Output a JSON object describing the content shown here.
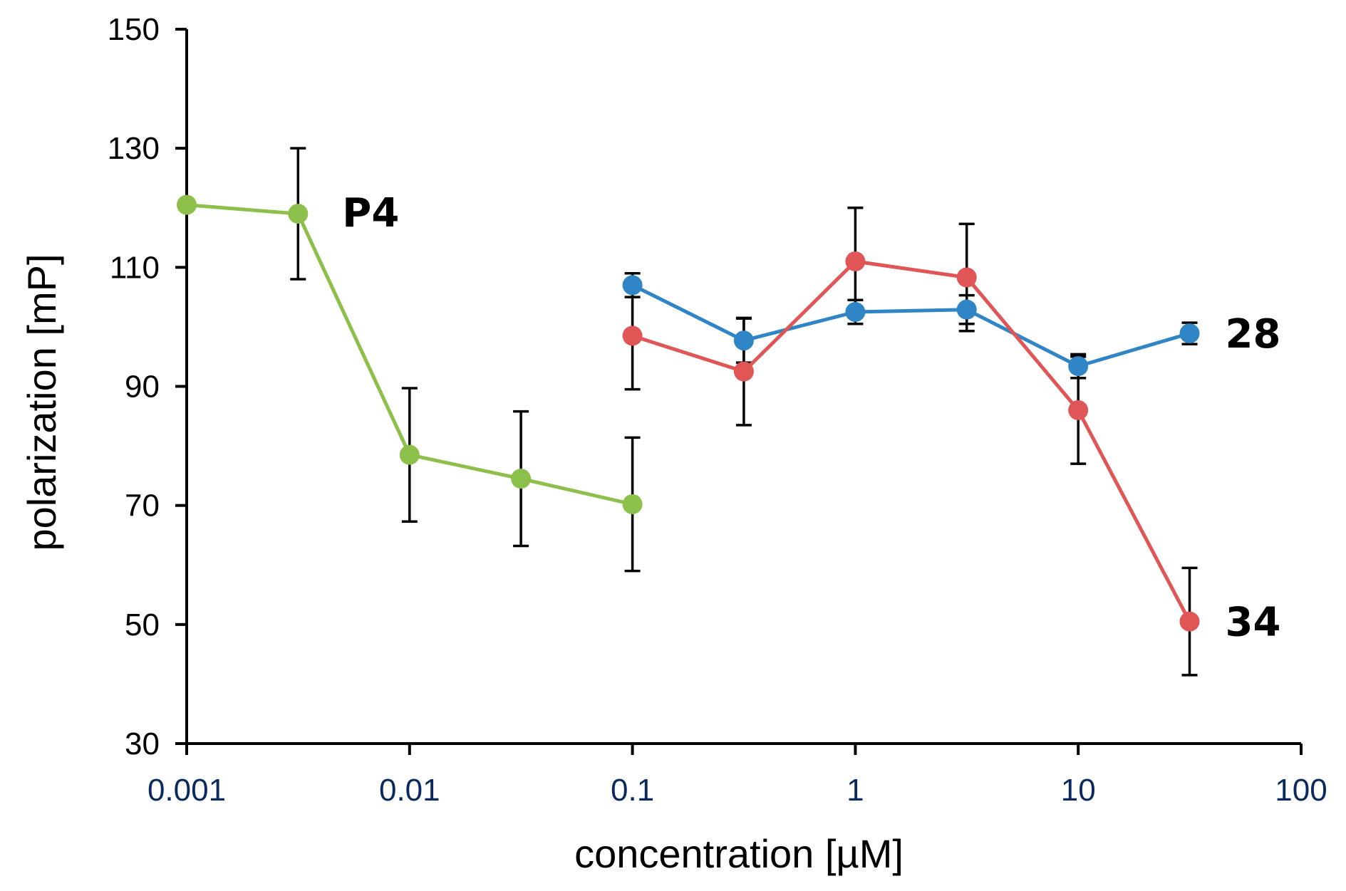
{
  "chart_data": {
    "type": "line",
    "title": "",
    "xlabel": "concentration [µM]",
    "ylabel": "polarization [mP]",
    "xscale": "log",
    "xlim": [
      0.001,
      100
    ],
    "ylim": [
      30,
      150
    ],
    "x_ticks": [
      0.001,
      0.01,
      0.1,
      1,
      10,
      100
    ],
    "x_tick_labels": [
      "0.001",
      "0.01",
      "0.1",
      "1",
      "10",
      "100"
    ],
    "y_ticks": [
      30,
      50,
      70,
      90,
      110,
      130,
      150
    ],
    "y_tick_labels": [
      "30",
      "50",
      "70",
      "90",
      "110",
      "130",
      "150"
    ],
    "grid": false,
    "series": [
      {
        "name": "P4",
        "color": "#8dc04b",
        "x": [
          0.001,
          0.00316,
          0.01,
          0.0316,
          0.1
        ],
        "values": [
          120.5,
          119,
          78.5,
          74.5,
          70.2
        ],
        "errors": [
          0,
          11,
          11.2,
          11.3,
          11.2
        ]
      },
      {
        "name": "28",
        "color": "#2f85c6",
        "x": [
          0.1,
          0.316,
          1,
          3.16,
          10,
          31.6
        ],
        "values": [
          107,
          97.7,
          102.5,
          102.9,
          93.4,
          98.9
        ],
        "errors": [
          2,
          3.7,
          2,
          2.4,
          2,
          1.8
        ]
      },
      {
        "name": "34",
        "color": "#e05555",
        "x": [
          0.1,
          0.316,
          1,
          3.16,
          10,
          31.6
        ],
        "values": [
          98.5,
          92.5,
          111,
          108.3,
          86,
          50.5
        ],
        "errors": [
          9,
          9,
          9,
          9,
          9,
          9
        ]
      }
    ]
  }
}
